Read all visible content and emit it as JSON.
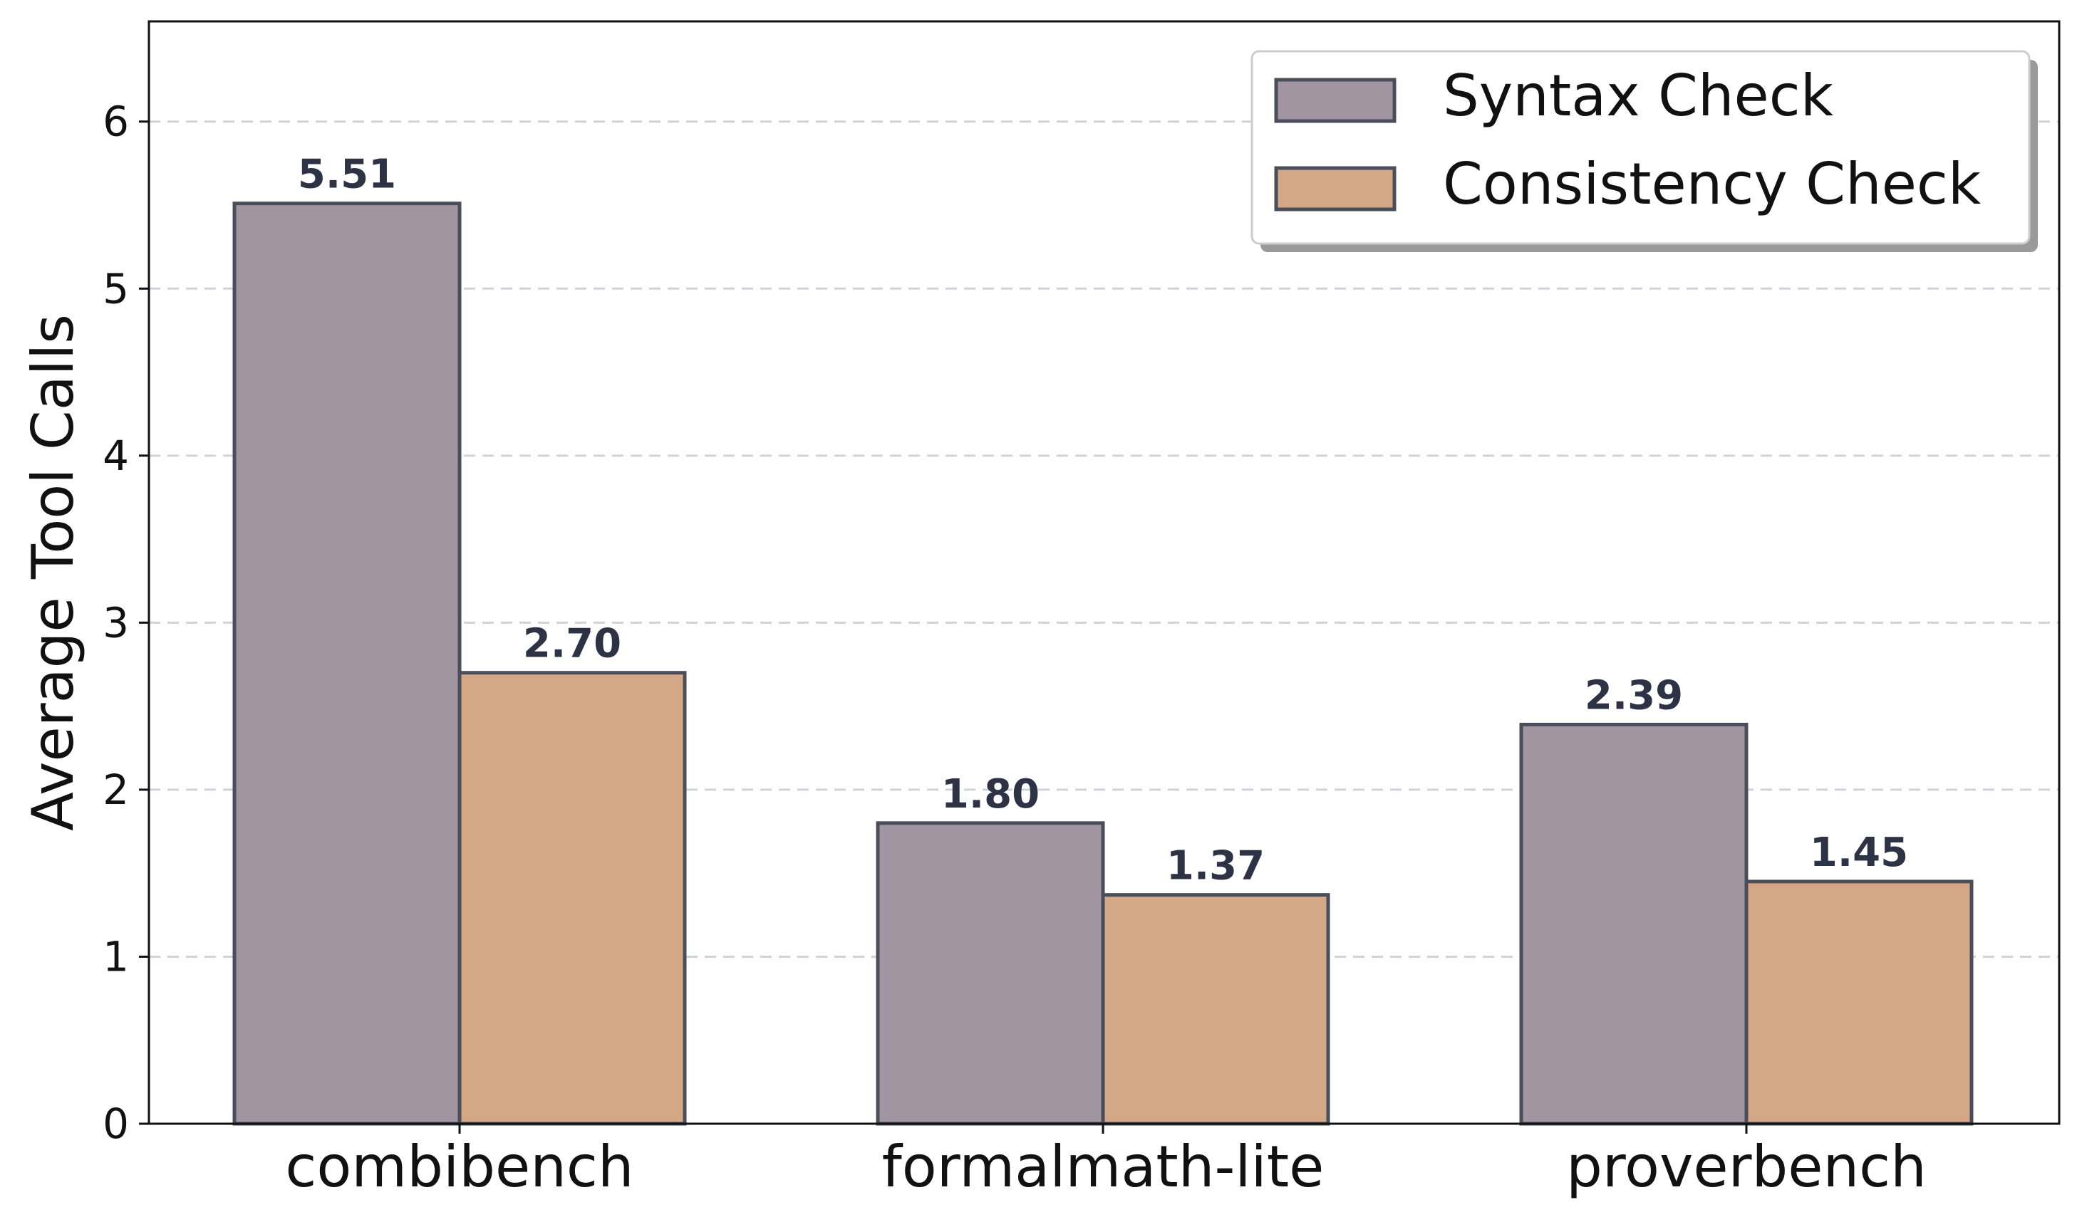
{
  "chart_data": {
    "type": "bar",
    "title": "",
    "xlabel": "",
    "ylabel": "Average Tool Calls",
    "ylim": [
      0,
      6.6
    ],
    "yticks": [
      0,
      1,
      2,
      3,
      4,
      5,
      6
    ],
    "grid": "y-dashed",
    "categories": [
      "combibench",
      "formalmath-lite",
      "proverbench"
    ],
    "series": [
      {
        "name": "Syntax Check",
        "color": "#a195a2",
        "values": [
          5.51,
          1.8,
          2.39
        ],
        "labels": [
          "5.51",
          "1.80",
          "2.39"
        ]
      },
      {
        "name": "Consistency Check",
        "color": "#d4a886",
        "values": [
          2.7,
          1.37,
          1.45
        ],
        "labels": [
          "2.70",
          "1.37",
          "1.45"
        ]
      }
    ],
    "legend": {
      "position": "top-right"
    }
  }
}
